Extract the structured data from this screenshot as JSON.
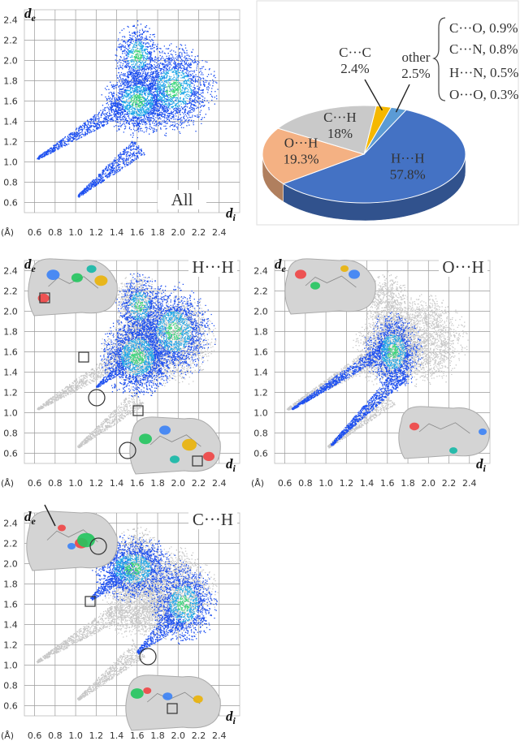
{
  "chart_data": [
    {
      "type": "fingerprint",
      "label": "All",
      "ylabel": "d",
      "ylabel_sub": "e",
      "xlabel": "d",
      "xlabel_sub": "i",
      "x_unit": "(Å)",
      "xlim": [
        0.5,
        2.6
      ],
      "ylim": [
        0.5,
        2.5
      ],
      "xticks": [
        0.6,
        0.8,
        {
          "value": 1,
          "label": "1.0"
        },
        1.2,
        1.4,
        1.6,
        1.8,
        {
          "value": 2,
          "label": "2.0"
        },
        2.2,
        2.4
      ],
      "yticks": [
        0.6,
        0.8,
        {
          "value": 1,
          "label": "1.0"
        },
        1.2,
        1.4,
        1.6,
        1.8,
        {
          "value": 2,
          "label": "2.0"
        },
        2.2,
        2.4
      ],
      "grid": true
    },
    {
      "type": "pie",
      "categories": [
        "C···C",
        "other",
        "H···H",
        "O···H",
        "C···H"
      ],
      "values": [
        2.4,
        2.5,
        57.8,
        19.3,
        18
      ],
      "value_labels": [
        "2.4%",
        "2.5%",
        "57.8%",
        "19.3%",
        "18%"
      ],
      "colors": [
        "#f5b800",
        "#5b9bd5",
        "#4472c4",
        "#f4b183",
        "#c9c9c9"
      ],
      "other_breakdown": {
        "values": [
          0.9,
          0.8,
          0.5,
          0.3
        ],
        "value_labels": [
          "C···O, 0.9%",
          "C···N, 0.8%",
          "H···N, 0.5%",
          "O···O, 0.3%"
        ]
      }
    },
    {
      "type": "fingerprint",
      "label": "H···H",
      "ylabel": "d",
      "ylabel_sub": "e",
      "xlabel": "d",
      "xlabel_sub": "i",
      "x_unit": "(Å)",
      "xlim": [
        0.5,
        2.6
      ],
      "ylim": [
        0.5,
        2.5
      ],
      "xticks": [
        0.6,
        0.8,
        {
          "value": 1,
          "label": "1.0"
        },
        1.2,
        1.4,
        1.6,
        1.8,
        {
          "value": 2,
          "label": "2.0"
        },
        2.2,
        2.4
      ],
      "yticks": [
        0.6,
        0.8,
        {
          "value": 1,
          "label": "1.0"
        },
        1.2,
        1.4,
        1.6,
        1.8,
        {
          "value": 2,
          "label": "2.0"
        },
        2.2,
        2.4
      ],
      "grid": true
    },
    {
      "type": "fingerprint",
      "label": "O···H",
      "ylabel": "d",
      "ylabel_sub": "e",
      "xlabel": "d",
      "xlabel_sub": "i",
      "x_unit": "(Å)",
      "xlim": [
        0.5,
        2.6
      ],
      "ylim": [
        0.5,
        2.5
      ],
      "xticks": [
        0.6,
        0.8,
        {
          "value": 1,
          "label": "1.0"
        },
        1.2,
        1.4,
        1.6,
        1.8,
        {
          "value": 2,
          "label": "2.0"
        },
        2.2,
        2.4
      ],
      "yticks": [
        0.6,
        0.8,
        {
          "value": 1,
          "label": "1.0"
        },
        1.2,
        1.4,
        1.6,
        1.8,
        {
          "value": 2,
          "label": "2.0"
        },
        2.2,
        2.4
      ],
      "grid": true
    },
    {
      "type": "fingerprint",
      "label": "C···H",
      "ylabel": "d",
      "ylabel_sub": "e",
      "xlabel": "d",
      "xlabel_sub": "i",
      "x_unit": "(Å)",
      "xlim": [
        0.5,
        2.6
      ],
      "ylim": [
        0.5,
        2.5
      ],
      "xticks": [
        0.6,
        0.8,
        {
          "value": 1,
          "label": "1.0"
        },
        1.2,
        1.4,
        1.6,
        1.8,
        {
          "value": 2,
          "label": "2.0"
        },
        2.2,
        2.4
      ],
      "yticks": [
        0.6,
        0.8,
        {
          "value": 1,
          "label": "1.0"
        },
        1.2,
        1.4,
        1.6,
        1.8,
        {
          "value": 2,
          "label": "2.0"
        },
        2.2,
        2.4
      ],
      "grid": true
    }
  ]
}
